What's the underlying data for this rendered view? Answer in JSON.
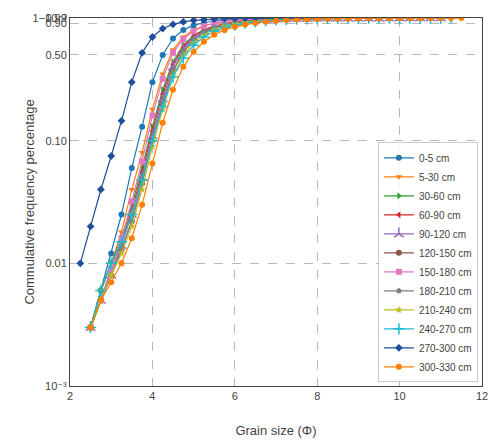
{
  "chart_data": {
    "type": "line",
    "xlabel": "Grain size (Φ)",
    "ylabel": "Commulative frequency percentage",
    "log": "y",
    "grid": true,
    "legend": "lower right",
    "xlim": [
      2,
      12
    ],
    "ylim": [
      0.001,
      1.0
    ],
    "xticks": [
      2,
      4,
      6,
      8,
      10,
      12
    ],
    "yticks": [
      {
        "value": 0.001,
        "label": "10⁻³"
      },
      0.01,
      {
        "value": 0.1,
        "label": "0.10"
      },
      {
        "value": 0.5,
        "label": "0.50"
      },
      {
        "value": 0.9,
        "label": "0.90"
      },
      0.99,
      {
        "value": 0.999,
        "label": "1−10⁻³"
      }
    ],
    "series": [
      {
        "name": "0-5 cm",
        "color": "#1f77b4",
        "marker": "circle",
        "x": [
          2.5,
          2.75,
          3.0,
          3.25,
          3.5,
          3.75,
          4.0,
          4.25,
          4.5,
          4.75,
          5.0,
          5.25,
          5.5,
          5.75,
          6.0,
          6.25,
          6.5,
          6.75,
          7.0,
          7.25,
          7.5,
          7.75,
          8.0,
          8.25,
          8.5
        ],
        "values": [
          0.003,
          0.006,
          0.012,
          0.025,
          0.06,
          0.13,
          0.3,
          0.5,
          0.68,
          0.8,
          0.87,
          0.915,
          0.945,
          0.963,
          0.975,
          0.982,
          0.987,
          0.991,
          0.994,
          0.996,
          0.9975,
          0.9984,
          0.999,
          0.9993,
          0.9995
        ]
      },
      {
        "name": "5-30 cm",
        "color": "#ff7f0e",
        "marker": "triangle-down",
        "x": [
          2.5,
          2.75,
          3.0,
          3.25,
          3.5,
          3.75,
          4.0,
          4.25,
          4.5,
          4.75,
          5.0,
          5.25,
          5.5,
          5.75,
          6.0,
          6.25,
          6.5,
          6.75,
          7.0,
          7.25,
          7.5,
          7.75,
          8.0,
          8.25,
          8.5,
          8.75,
          9.0,
          9.25,
          9.5,
          9.75,
          10.0,
          10.25,
          10.5,
          10.75
        ],
        "values": [
          0.003,
          0.006,
          0.01,
          0.018,
          0.04,
          0.08,
          0.18,
          0.35,
          0.55,
          0.7,
          0.8,
          0.865,
          0.905,
          0.935,
          0.955,
          0.968,
          0.977,
          0.984,
          0.988,
          0.991,
          0.993,
          0.9945,
          0.996,
          0.9968,
          0.9975,
          0.998,
          0.9985,
          0.9988,
          0.999,
          0.9992,
          0.9993,
          0.9994,
          0.9995,
          0.9996
        ]
      },
      {
        "name": "30-60 cm",
        "color": "#2ca02c",
        "marker": "triangle-right",
        "x": [
          2.5,
          2.75,
          3.0,
          3.25,
          3.5,
          3.75,
          4.0,
          4.25,
          4.5,
          4.75,
          5.0,
          5.25,
          5.5,
          5.75,
          6.0,
          6.25,
          6.5,
          6.75,
          7.0,
          7.25,
          7.5,
          7.75,
          8.0,
          8.25,
          8.5,
          8.75,
          9.0,
          9.25,
          9.5,
          9.75,
          10.0,
          10.25,
          10.5,
          10.75,
          11.0,
          11.25
        ],
        "values": [
          0.003,
          0.006,
          0.01,
          0.016,
          0.03,
          0.06,
          0.13,
          0.26,
          0.44,
          0.6,
          0.72,
          0.8,
          0.855,
          0.895,
          0.925,
          0.948,
          0.963,
          0.974,
          0.981,
          0.987,
          0.99,
          0.9928,
          0.9945,
          0.996,
          0.9968,
          0.9975,
          0.998,
          0.9985,
          0.9988,
          0.999,
          0.9992,
          0.9993,
          0.9994,
          0.9995,
          0.9996,
          0.9997
        ]
      },
      {
        "name": "60-90 cm",
        "color": "#d62728",
        "marker": "triangle-left",
        "x": [
          2.5,
          2.75,
          3.0,
          3.25,
          3.5,
          3.75,
          4.0,
          4.25,
          4.5,
          4.75,
          5.0,
          5.25,
          5.5,
          5.75,
          6.0,
          6.25,
          6.5,
          6.75,
          7.0,
          7.25,
          7.5,
          7.75,
          8.0,
          8.25,
          8.5,
          8.75,
          9.0,
          9.25,
          9.5,
          9.75,
          10.0,
          10.25,
          10.5
        ],
        "values": [
          0.003,
          0.005,
          0.009,
          0.015,
          0.027,
          0.055,
          0.12,
          0.24,
          0.42,
          0.58,
          0.71,
          0.8,
          0.86,
          0.9,
          0.932,
          0.953,
          0.967,
          0.977,
          0.983,
          0.988,
          0.991,
          0.9935,
          0.995,
          0.996,
          0.997,
          0.9977,
          0.9982,
          0.9986,
          0.9989,
          0.9991,
          0.9993,
          0.9994,
          0.9995
        ]
      },
      {
        "name": "90-120 cm",
        "color": "#9467bd",
        "marker": "upsilon",
        "x": [
          2.5,
          2.75,
          3.0,
          3.25,
          3.5,
          3.75,
          4.0,
          4.25,
          4.5,
          4.75,
          5.0,
          5.25,
          5.5,
          5.75,
          6.0,
          6.25,
          6.5,
          6.75,
          7.0,
          7.25,
          7.5,
          7.75,
          8.0,
          8.25,
          8.5,
          8.75,
          9.0,
          9.25,
          9.5,
          9.75,
          10.0,
          10.25,
          10.5,
          10.75,
          11.0
        ],
        "values": [
          0.003,
          0.005,
          0.008,
          0.014,
          0.025,
          0.05,
          0.11,
          0.22,
          0.4,
          0.56,
          0.69,
          0.78,
          0.845,
          0.89,
          0.922,
          0.945,
          0.962,
          0.972,
          0.98,
          0.986,
          0.99,
          0.9925,
          0.9944,
          0.996,
          0.997,
          0.9977,
          0.9982,
          0.9986,
          0.9989,
          0.9991,
          0.9993,
          0.9994,
          0.9995,
          0.9996,
          0.9997
        ]
      },
      {
        "name": "120-150 cm",
        "color": "#8c564b",
        "marker": "circle",
        "x": [
          2.5,
          2.75,
          3.0,
          3.25,
          3.5,
          3.75,
          4.0,
          4.25,
          4.5,
          4.75,
          5.0,
          5.25,
          5.5,
          5.75,
          6.0,
          6.25,
          6.5,
          6.75,
          7.0,
          7.25,
          7.5,
          7.75,
          8.0,
          8.25,
          8.5,
          8.75,
          9.0,
          9.25,
          9.5,
          9.75,
          10.0,
          10.25,
          10.5
        ],
        "values": [
          0.003,
          0.005,
          0.008,
          0.013,
          0.022,
          0.045,
          0.1,
          0.2,
          0.37,
          0.53,
          0.66,
          0.76,
          0.83,
          0.875,
          0.912,
          0.937,
          0.956,
          0.968,
          0.977,
          0.983,
          0.988,
          0.991,
          0.9935,
          0.995,
          0.9962,
          0.9972,
          0.9979,
          0.9984,
          0.9987,
          0.999,
          0.9992,
          0.9994,
          0.9995
        ]
      },
      {
        "name": "150-180 cm",
        "color": "#e377c2",
        "marker": "square",
        "x": [
          2.5,
          2.75,
          3.0,
          3.25,
          3.5,
          3.75,
          4.0,
          4.25,
          4.5,
          4.75,
          5.0,
          5.25,
          5.5,
          5.75,
          6.0,
          6.25,
          6.5,
          6.75,
          7.0,
          7.25,
          7.5,
          7.75,
          8.0,
          8.25,
          8.5,
          8.75,
          9.0
        ],
        "values": [
          0.003,
          0.005,
          0.009,
          0.016,
          0.032,
          0.068,
          0.16,
          0.32,
          0.52,
          0.67,
          0.78,
          0.858,
          0.907,
          0.94,
          0.96,
          0.972,
          0.981,
          0.987,
          0.991,
          0.9937,
          0.9952,
          0.9963,
          0.9972,
          0.9979,
          0.9984,
          0.9988,
          0.9991
        ]
      },
      {
        "name": "180-210 cm",
        "color": "#7f7f7f",
        "marker": "pentagon",
        "x": [
          2.5,
          2.75,
          3.0,
          3.25,
          3.5,
          3.75,
          4.0,
          4.25,
          4.5,
          4.75,
          5.0,
          5.25,
          5.5,
          5.75,
          6.0,
          6.25,
          6.5,
          6.75,
          7.0,
          7.25,
          7.5,
          7.75,
          8.0,
          8.25,
          8.5,
          8.75,
          9.0,
          9.25,
          9.5,
          9.75,
          10.0,
          10.25
        ],
        "values": [
          0.003,
          0.005,
          0.008,
          0.013,
          0.022,
          0.045,
          0.1,
          0.2,
          0.37,
          0.54,
          0.67,
          0.77,
          0.84,
          0.88,
          0.913,
          0.938,
          0.956,
          0.969,
          0.978,
          0.984,
          0.988,
          0.991,
          0.9932,
          0.9948,
          0.996,
          0.997,
          0.9977,
          0.9982,
          0.9986,
          0.9989,
          0.9992,
          0.9994
        ]
      },
      {
        "name": "210-240 cm",
        "color": "#bcbd22",
        "marker": "star",
        "x": [
          2.5,
          2.75,
          3.0,
          3.25,
          3.5,
          3.75,
          4.0,
          4.25,
          4.5,
          4.75,
          5.0,
          5.25,
          5.5,
          5.75,
          6.0,
          6.25,
          6.5,
          6.75,
          7.0,
          7.25,
          7.5,
          7.75,
          8.0,
          8.25,
          8.5,
          8.75,
          9.0,
          9.25,
          9.5,
          9.75,
          10.0,
          10.25,
          10.5,
          10.75,
          11.0
        ],
        "values": [
          0.003,
          0.005,
          0.008,
          0.012,
          0.02,
          0.04,
          0.09,
          0.18,
          0.34,
          0.5,
          0.63,
          0.73,
          0.81,
          0.858,
          0.893,
          0.921,
          0.942,
          0.958,
          0.969,
          0.977,
          0.983,
          0.987,
          0.99,
          0.9924,
          0.9942,
          0.9956,
          0.9966,
          0.9973,
          0.9979,
          0.9984,
          0.9987,
          0.999,
          0.9992,
          0.9994,
          0.9996
        ]
      },
      {
        "name": "240-270 cm",
        "color": "#17becf",
        "marker": "plus",
        "x": [
          2.5,
          2.75,
          3.0,
          3.25,
          3.5,
          3.75,
          4.0,
          4.25,
          4.5,
          4.75,
          5.0,
          5.25,
          5.5,
          5.75,
          6.0,
          6.25,
          6.5,
          6.75,
          7.0,
          7.25,
          7.5,
          7.75,
          8.0,
          8.25,
          8.5,
          8.75,
          9.0,
          9.25,
          9.5,
          9.75,
          10.0,
          10.25,
          10.5,
          10.75,
          11.0,
          11.25
        ],
        "values": [
          0.003,
          0.006,
          0.01,
          0.015,
          0.025,
          0.048,
          0.1,
          0.19,
          0.33,
          0.47,
          0.6,
          0.7,
          0.78,
          0.835,
          0.876,
          0.907,
          0.931,
          0.95,
          0.963,
          0.972,
          0.979,
          0.984,
          0.9878,
          0.9907,
          0.9929,
          0.9946,
          0.9959,
          0.9968,
          0.9975,
          0.9981,
          0.9985,
          0.9988,
          0.9991,
          0.9993,
          0.9995,
          0.9997
        ]
      },
      {
        "name": "270-300 cm",
        "color": "#1f4e9c",
        "marker": "diamond",
        "x": [
          2.25,
          2.5,
          2.75,
          3.0,
          3.25,
          3.5,
          3.75,
          4.0,
          4.25,
          4.5,
          4.75,
          5.0,
          5.25,
          5.5,
          5.75,
          6.0,
          6.25,
          6.5,
          6.75,
          7.0,
          7.25,
          7.5,
          7.75,
          8.0,
          8.25,
          8.5,
          8.75,
          9.0,
          9.25,
          9.5
        ],
        "values": [
          0.01,
          0.02,
          0.04,
          0.075,
          0.145,
          0.3,
          0.52,
          0.7,
          0.82,
          0.888,
          0.93,
          0.957,
          0.971,
          0.981,
          0.987,
          0.991,
          0.9937,
          0.9953,
          0.9964,
          0.9973,
          0.9979,
          0.9984,
          0.9988,
          0.999,
          0.9992,
          0.9994,
          0.9995,
          0.9996,
          0.9997,
          0.9998
        ]
      },
      {
        "name": "300-330 cm",
        "color": "#ff7f00",
        "marker": "circle",
        "x": [
          2.5,
          2.75,
          3.0,
          3.25,
          3.5,
          3.75,
          4.0,
          4.25,
          4.5,
          4.75,
          5.0,
          5.25,
          5.5,
          5.75,
          6.0,
          6.25,
          6.5,
          6.75,
          7.0,
          7.25,
          7.5,
          7.75,
          8.0,
          8.25,
          8.5,
          8.75,
          9.0,
          9.25,
          9.5,
          9.75,
          10.0,
          10.25,
          10.5,
          10.75,
          11.0,
          11.25,
          11.5
        ],
        "values": [
          0.003,
          0.005,
          0.007,
          0.01,
          0.016,
          0.03,
          0.065,
          0.14,
          0.26,
          0.4,
          0.53,
          0.64,
          0.73,
          0.8,
          0.847,
          0.884,
          0.912,
          0.934,
          0.951,
          0.963,
          0.972,
          0.979,
          0.984,
          0.988,
          0.9905,
          0.9926,
          0.9942,
          0.9955,
          0.9964,
          0.9971,
          0.9977,
          0.9981,
          0.9985,
          0.9988,
          0.999,
          0.9992,
          0.9994
        ]
      }
    ]
  }
}
